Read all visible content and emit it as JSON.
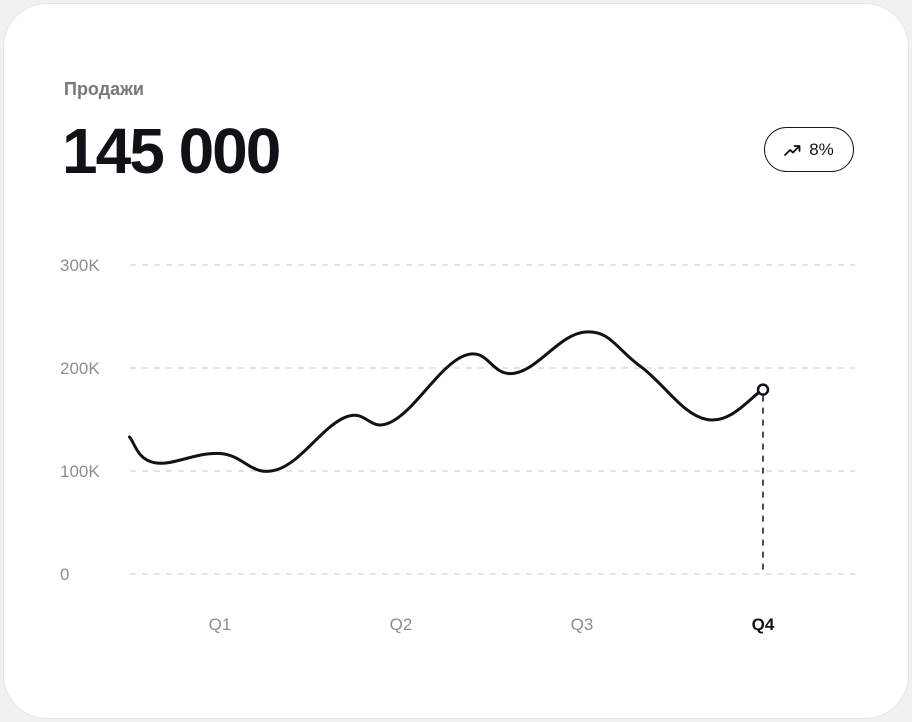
{
  "card": {
    "title": "Продажи",
    "total": "145 000",
    "change": "8%",
    "change_icon": "trending-up-icon"
  },
  "chart_data": {
    "type": "line",
    "categories": [
      "Q1",
      "Q2",
      "Q3",
      "Q4"
    ],
    "highlighted_category": "Q4",
    "yticks": [
      "0",
      "100K",
      "200K",
      "300K"
    ],
    "ylim": [
      0,
      300000
    ],
    "xlim": [
      0.5,
      4
    ],
    "grid": true,
    "line_color": "#111218",
    "series": [
      {
        "x": [
          0.5,
          0.64,
          1.0,
          1.31,
          1.69,
          1.95,
          2.35,
          2.63,
          3.02,
          3.32,
          3.69,
          4.0
        ],
        "y": [
          133000,
          108000,
          117000,
          101000,
          152000,
          148000,
          212000,
          195000,
          235000,
          202000,
          150000,
          179000
        ]
      }
    ]
  }
}
